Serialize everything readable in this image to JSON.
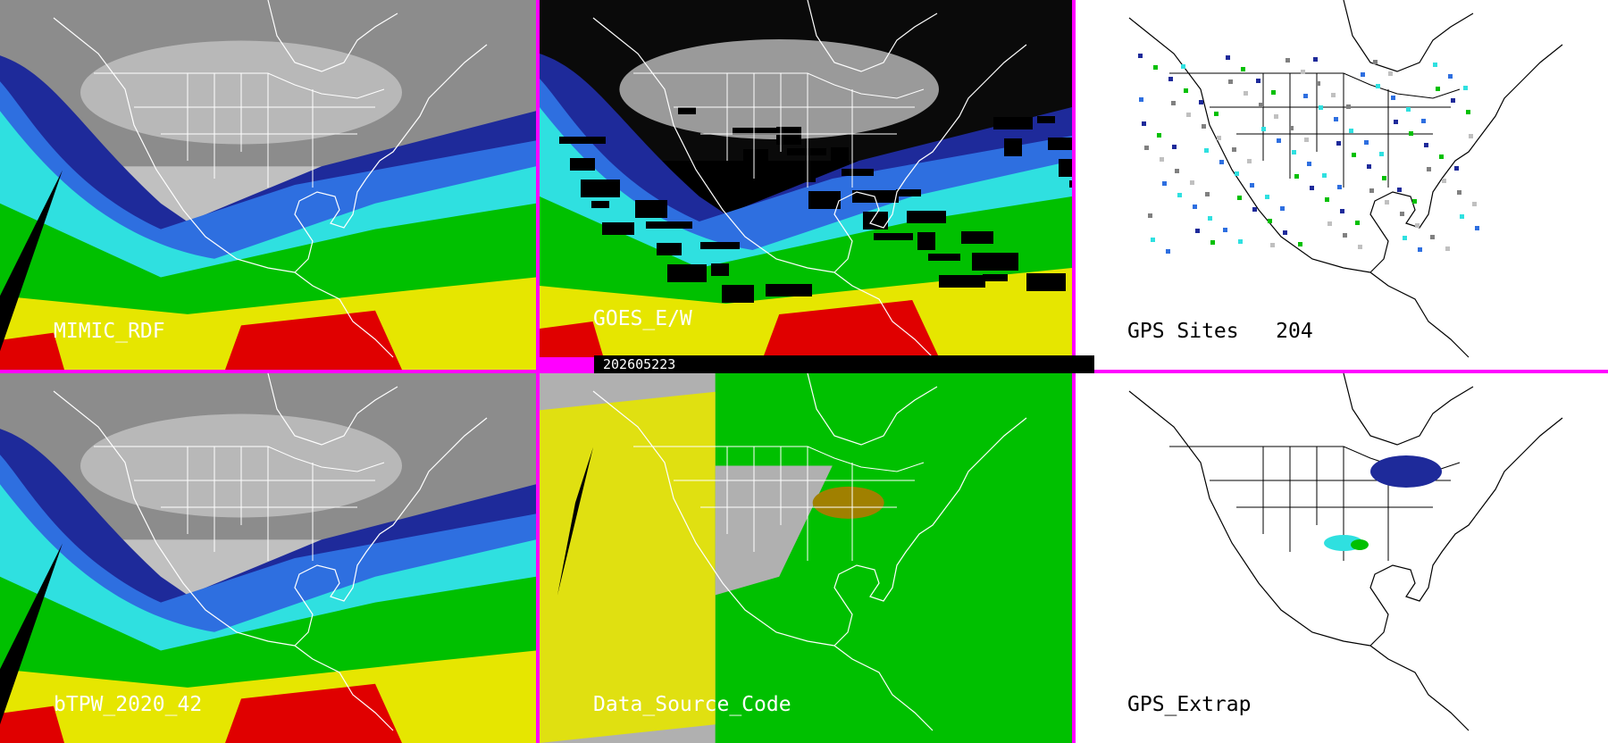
{
  "panels": [
    {
      "label": "MIMIC_RDF",
      "scheme": "tpw"
    },
    {
      "label": "GOES_E/W",
      "scheme": "goes"
    },
    {
      "label": "GPS Sites   204",
      "scheme": "gps"
    },
    {
      "label": "bTPW_2020_42",
      "scheme": "tpw"
    },
    {
      "label": "Data_Source_Code",
      "scheme": "source"
    },
    {
      "label": "GPS_Extrap",
      "scheme": "extrap"
    }
  ],
  "timestamp": "202605223",
  "colors": {
    "border": "#ff00ff",
    "tpw_scale": [
      "#c0c0c0",
      "#1e2a9a",
      "#2e6fe0",
      "#2fe0e0",
      "#00c000",
      "#e6e600",
      "#e00000"
    ],
    "source_scale": [
      "#e6e600",
      "#b0b0b0",
      "#00c000",
      "#a08000"
    ]
  },
  "icons": [
    "map-outline"
  ]
}
